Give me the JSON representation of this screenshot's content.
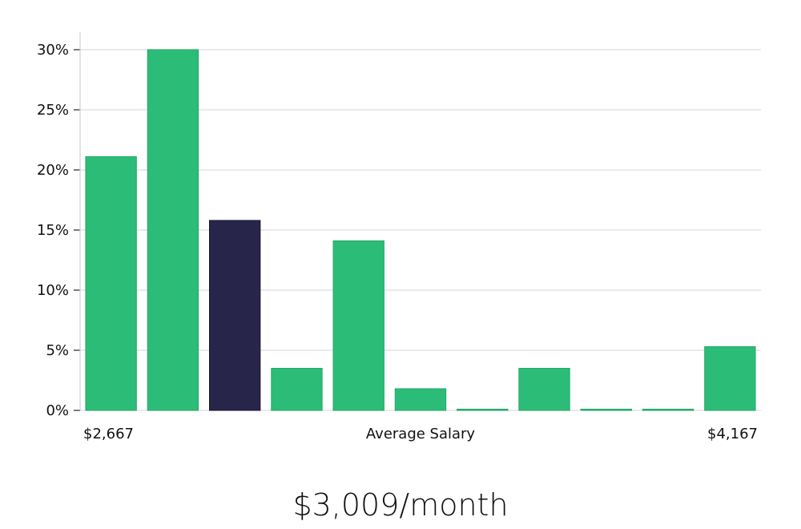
{
  "chart_data": {
    "type": "bar",
    "xlabel": "Average Salary",
    "x_range_labels": {
      "min": "$2,667",
      "max": "$4,167"
    },
    "ylabel": "",
    "ylim": [
      0,
      30
    ],
    "yticks": [
      0,
      5,
      10,
      15,
      20,
      25,
      30
    ],
    "ytick_labels": [
      "0%",
      "5%",
      "10%",
      "15%",
      "20%",
      "25%",
      "30%"
    ],
    "values": [
      21.1,
      30.0,
      15.8,
      3.5,
      14.1,
      1.8,
      0.1,
      3.5,
      0.1,
      0.1,
      5.3
    ],
    "highlight_index": 2,
    "grid": true,
    "colors": {
      "bar": "#2bbd77",
      "highlight": "#28254a",
      "grid": "#e3e3e3",
      "axis": "#d0d0d0"
    }
  },
  "summary": {
    "average_salary": "$3,009/month"
  }
}
